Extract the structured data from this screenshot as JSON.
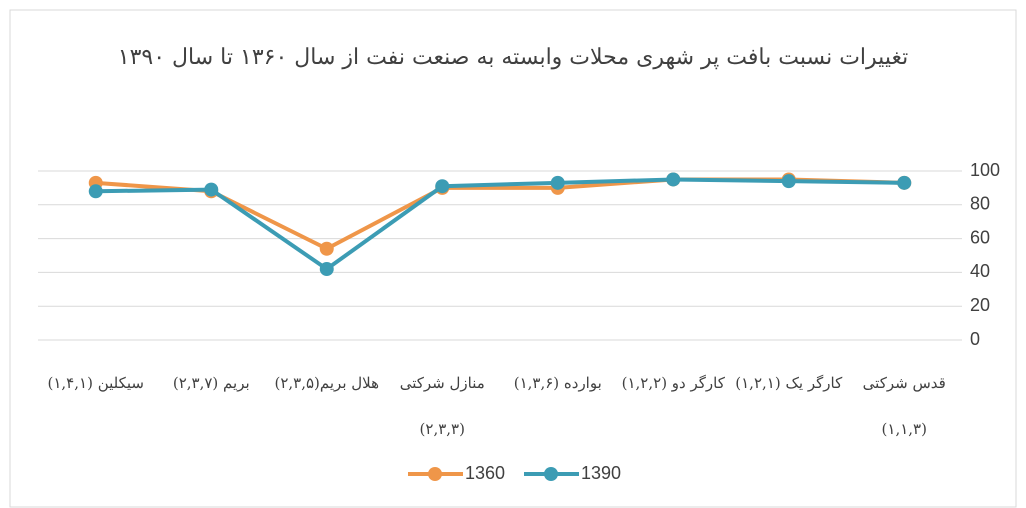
{
  "chart_data": {
    "type": "line",
    "title": "تغییرات نسبت بافت پر شهری محلات وابسته به صنعت نفت از سال ۱۳۶۰ تا سال ۱۳۹۰",
    "categories": [
      "سیکلین (۱,۴,۱)",
      "بریم (۲,۳,۷)",
      "هلال بریم(۲,۳,۵)",
      "منازل شرکتی (۲,۳,۳)",
      "بوارده (۱,۳,۶)",
      "کارگر دو (۱,۲,۲)",
      "کارگر یک (۱,۲,۱)",
      "قدس شرکتی (۱,۱,۳)"
    ],
    "series": [
      {
        "name": "1360",
        "color": "#ef9649",
        "values": [
          93,
          88,
          54,
          90,
          90,
          95,
          95,
          93
        ]
      },
      {
        "name": "1390",
        "color": "#3c9cb4",
        "values": [
          88,
          89,
          42,
          91,
          93,
          95,
          94,
          93
        ]
      }
    ],
    "ylim": [
      0,
      100
    ],
    "yticks": [
      0,
      20,
      40,
      60,
      80,
      100
    ],
    "grid": true
  }
}
